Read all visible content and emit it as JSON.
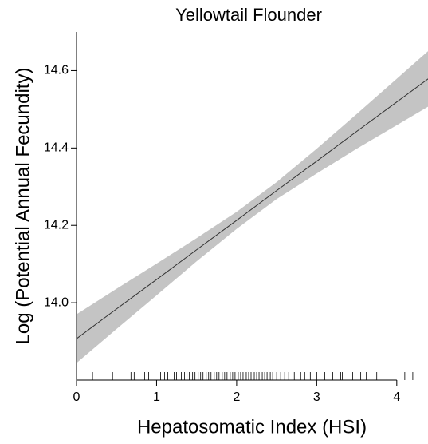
{
  "chart_data": {
    "type": "line",
    "title": "Yellowtail Flounder",
    "x_label": "Hepatosomatic Index (HSI)",
    "y_label": "Log (Potential Annual Fecundity)",
    "x": [
      0,
      0.5,
      1,
      1.5,
      2,
      2.5,
      3,
      3.5,
      4,
      4.4
    ],
    "values": [
      13.907,
      13.984,
      14.06,
      14.137,
      14.213,
      14.29,
      14.366,
      14.443,
      14.519,
      14.58
    ],
    "upper": [
      13.97,
      14.036,
      14.101,
      14.167,
      14.235,
      14.312,
      14.398,
      14.488,
      14.579,
      14.652
    ],
    "lower": [
      13.844,
      13.932,
      14.019,
      14.107,
      14.191,
      14.268,
      14.334,
      14.398,
      14.459,
      14.508
    ],
    "rug": [
      0.2,
      0.45,
      0.68,
      0.72,
      0.85,
      0.9,
      0.98,
      1.05,
      1.1,
      1.14,
      1.18,
      1.22,
      1.25,
      1.28,
      1.31,
      1.35,
      1.38,
      1.41,
      1.45,
      1.48,
      1.52,
      1.55,
      1.58,
      1.62,
      1.65,
      1.68,
      1.72,
      1.75,
      1.78,
      1.82,
      1.85,
      1.88,
      1.92,
      1.95,
      1.98,
      2.02,
      2.05,
      2.08,
      2.12,
      2.15,
      2.18,
      2.22,
      2.25,
      2.28,
      2.32,
      2.35,
      2.38,
      2.42,
      2.45,
      2.5,
      2.55,
      2.6,
      2.65,
      2.72,
      2.8,
      2.85,
      2.92,
      3.0,
      3.1,
      3.2,
      3.3,
      3.32,
      3.45,
      3.55,
      3.62,
      3.75,
      4.1,
      4.2
    ],
    "line_color": "#333333",
    "band_color": "#c4c4c4",
    "xlim": [
      0,
      4.39
    ],
    "xticks": [
      0,
      1,
      2,
      3,
      4
    ],
    "ylim": [
      13.8,
      14.7
    ],
    "yticks": [
      {
        "value": 14,
        "label": "14.0"
      },
      14.2,
      14.4,
      14.6
    ]
  }
}
